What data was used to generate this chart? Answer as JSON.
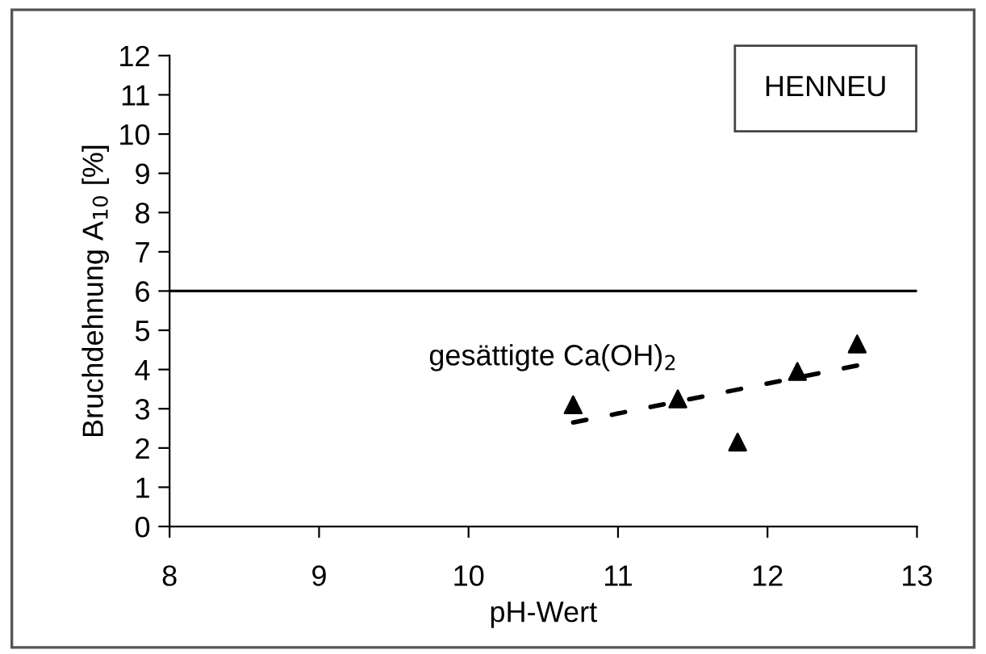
{
  "chart_data": {
    "type": "scatter",
    "xlabel": "pH-Wert",
    "ylabel": "Bruchdehnung A$_{10}$ [%]",
    "annotations": [
      "HENNEU",
      {
        "text": "gesättigte Ca(OH)$_{2}$",
        "x": 11.4,
        "y": 3.25
      }
    ],
    "series": [
      {
        "color": "#000000",
        "marker": "triangle",
        "x": [
          10.7,
          11.4,
          11.8,
          12.2,
          12.6
        ],
        "values": [
          3.1,
          3.25,
          2.15,
          3.95,
          4.65
        ]
      },
      {
        "type": "line",
        "color": "#000000",
        "line_style": "dotted",
        "x": [
          10.7,
          12.6
        ],
        "values": [
          2.65,
          4.1
        ]
      }
    ],
    "ref_lines": [
      {
        "axis": "y",
        "value": 6,
        "color": "#000000"
      }
    ],
    "xlim": [
      8,
      13
    ],
    "xticks": [
      8,
      9,
      10,
      11,
      12,
      13
    ],
    "ylim": [
      0,
      12
    ],
    "yticks": [
      0,
      1,
      2,
      3,
      4,
      5,
      6,
      7,
      8,
      9,
      10,
      11,
      12
    ],
    "grid": false
  }
}
